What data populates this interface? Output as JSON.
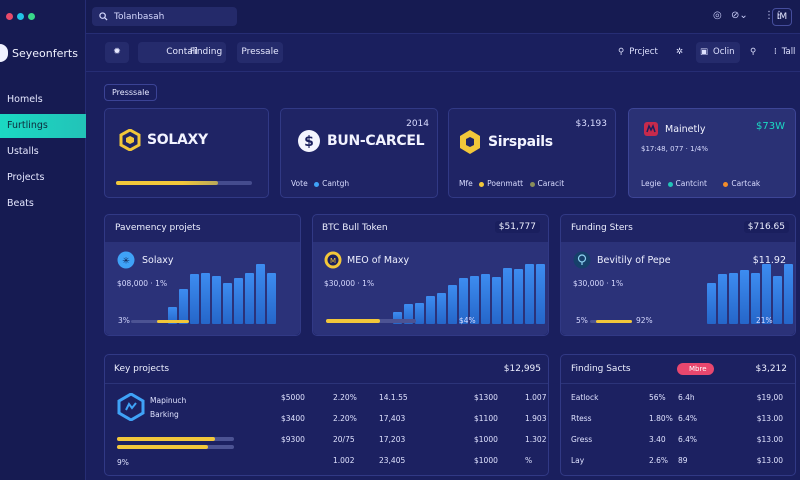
{
  "window": {
    "dots": [
      "#e84a6a",
      "#22c3e6",
      "#39d98a"
    ]
  },
  "sidebar": {
    "brand": "Seyeonferts",
    "items": [
      {
        "label": "Homels",
        "active": false
      },
      {
        "label": "Furtlings",
        "active": true
      },
      {
        "label": "Ustalls",
        "active": false
      },
      {
        "label": "Projects",
        "active": false
      },
      {
        "label": "Beats",
        "active": false
      }
    ]
  },
  "topbar": {
    "search_value": "Tolanbasah",
    "avatar_label": "IM"
  },
  "tabs": [
    "Contall",
    "Finding",
    "Pressale"
  ],
  "tab_right": {
    "project": "Prcject",
    "online": "Oclin",
    "tall": "Tall"
  },
  "section_label": "Presssale",
  "top_cards": [
    {
      "name": "SOLAXY",
      "value": "",
      "progress": 0.75,
      "footer": []
    },
    {
      "name": "BUN-CARCEL",
      "value": "2014",
      "footer": [
        "Vote",
        "Cantgh"
      ]
    },
    {
      "name": "Sirspails",
      "value": "$3,193",
      "footer": [
        "Mfe",
        "Poenmatt",
        "Caracit"
      ]
    },
    {
      "name": "Mainetly",
      "value": "$73W",
      "sub": "$17:48, 077 · 1/4%",
      "footer": [
        "Legie",
        "Cantcint",
        "Cartcak"
      ]
    }
  ],
  "mid_cards": [
    {
      "title": "Pavemency projets",
      "coin": "Solaxy",
      "sub": "$08,000 · 1%",
      "footer_left": "3%",
      "footer_mid": "",
      "bars": [
        0.2,
        0.42,
        0.6,
        0.62,
        0.58,
        0.5,
        0.56,
        0.62,
        0.72,
        0.62
      ],
      "progress": 0.55
    },
    {
      "title": "BTC Bull Token",
      "value": "$51,777",
      "coin": "MEO of Maxy",
      "sub": "$30,000 · 1%",
      "footer_left": "",
      "footer_mid": "$4%",
      "bars": [
        0.14,
        0.24,
        0.26,
        0.34,
        0.38,
        0.47,
        0.56,
        0.58,
        0.6,
        0.57,
        0.68,
        0.66,
        0.73,
        0.72
      ],
      "progress": 0.6
    },
    {
      "title": "Funding Sters",
      "value": "$716.65",
      "coin": "Bevitily of Pepe",
      "coin_value": "$11.92",
      "sub": "$30,000 · 1%",
      "footer_left": "5%",
      "footer_mid": "92%",
      "footer_right": "21%",
      "bars": [
        0.5,
        0.6,
        0.62,
        0.65,
        0.62,
        0.73,
        0.58,
        0.73
      ],
      "progress": 0.85
    }
  ],
  "key_projects": {
    "title": "Key projects",
    "total": "$12,995",
    "project_name": "Mapinuch",
    "project_sub": "Barking",
    "footer": "9%",
    "rows": [
      [
        "$5000",
        "2.20%",
        "14.1.55",
        "$1300",
        "1.007"
      ],
      [
        "$3400",
        "2.20%",
        "17,403",
        "$1100",
        "1.903"
      ],
      [
        "$9300",
        "20/75",
        "17,203",
        "$1000",
        "1.302"
      ],
      [
        "",
        "1.002",
        "23,405",
        "$1000",
        "%"
      ]
    ]
  },
  "funding_sects": {
    "title": "Finding Sacts",
    "badge": "Mbre",
    "total": "$3,212",
    "rows": [
      [
        "Eatlock",
        "56%",
        "6.4h",
        "$19,00"
      ],
      [
        "Rtess",
        "1.80%",
        "6.4%",
        "$13.00"
      ],
      [
        "Gress",
        "3.40",
        "6.4%",
        "$13.00"
      ],
      [
        "Lay",
        "2.6%",
        "89",
        "$13.00"
      ]
    ]
  }
}
